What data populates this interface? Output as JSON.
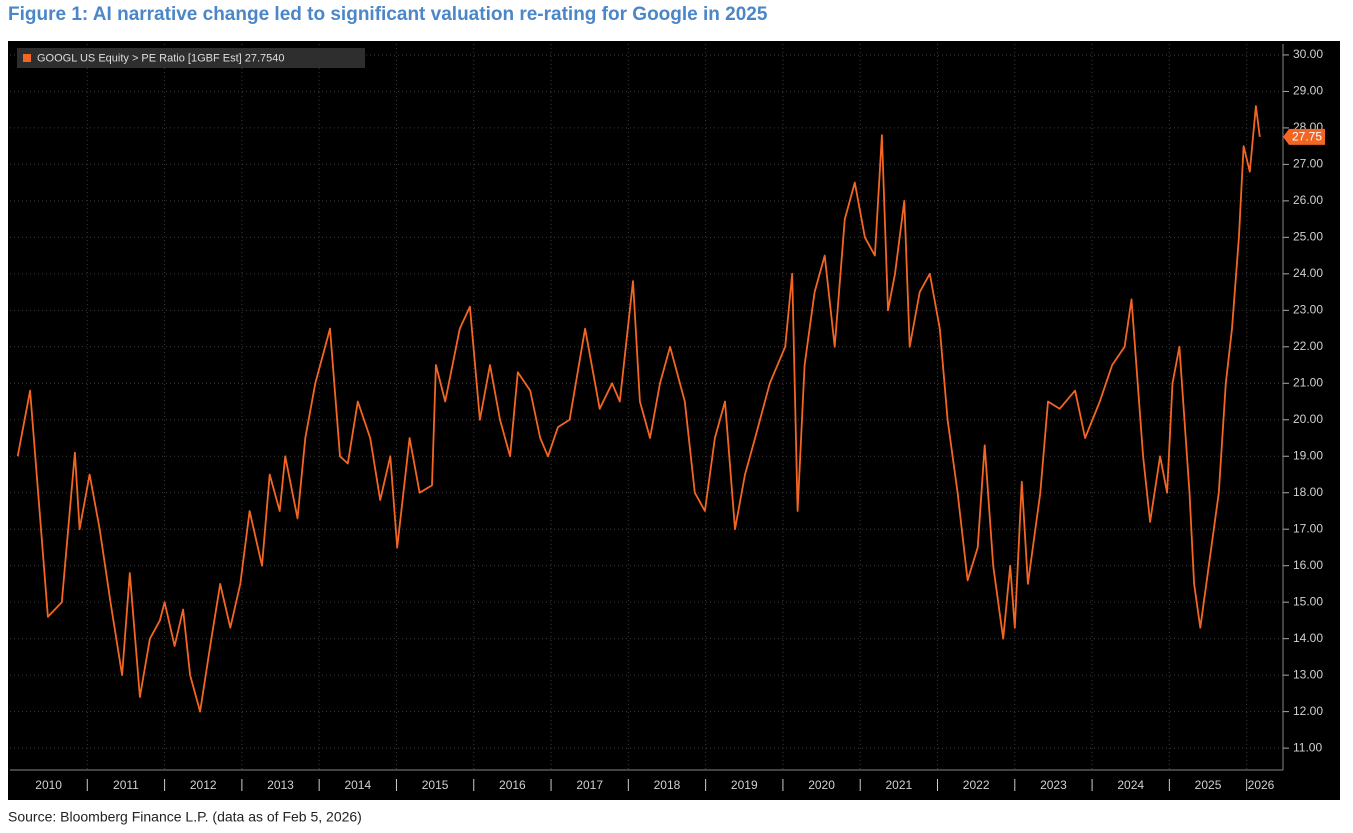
{
  "chart_data": {
    "type": "line",
    "title": "Figure 1: AI narrative change led to significant valuation re-rating for Google in 2025",
    "source": "Source: Bloomberg Finance L.P. (data as of Feb 5, 2026)",
    "x": [
      2010.1,
      2010.26,
      2010.49,
      2010.67,
      2010.84,
      2010.9,
      2011.03,
      2011.16,
      2011.3,
      2011.45,
      2011.55,
      2011.68,
      2011.81,
      2011.94,
      2012.0,
      2012.13,
      2012.24,
      2012.33,
      2012.46,
      2012.59,
      2012.72,
      2012.85,
      2012.98,
      2013.1,
      2013.26,
      2013.36,
      2013.49,
      2013.56,
      2013.72,
      2013.82,
      2013.95,
      2014.14,
      2014.27,
      2014.37,
      2014.5,
      2014.66,
      2014.79,
      2014.92,
      2015.01,
      2015.17,
      2015.3,
      2015.46,
      2015.51,
      2015.63,
      2015.82,
      2015.95,
      2016.08,
      2016.21,
      2016.34,
      2016.47,
      2016.57,
      2016.73,
      2016.86,
      2016.96,
      2017.09,
      2017.24,
      2017.44,
      2017.63,
      2017.79,
      2017.89,
      2018.06,
      2018.15,
      2018.28,
      2018.41,
      2018.54,
      2018.73,
      2018.86,
      2018.99,
      2019.12,
      2019.25,
      2019.38,
      2019.51,
      2019.64,
      2019.83,
      2020.03,
      2020.12,
      2020.19,
      2020.28,
      2020.41,
      2020.54,
      2020.67,
      2020.8,
      2020.93,
      2021.06,
      2021.19,
      2021.28,
      2021.36,
      2021.45,
      2021.57,
      2021.64,
      2021.77,
      2021.9,
      2022.03,
      2022.13,
      2022.26,
      2022.39,
      2022.52,
      2022.61,
      2022.72,
      2022.85,
      2022.94,
      2023.0,
      2023.09,
      2023.17,
      2023.33,
      2023.43,
      2023.58,
      2023.78,
      2023.91,
      2024.1,
      2024.26,
      2024.42,
      2024.51,
      2024.66,
      2024.75,
      2024.88,
      2024.97,
      2025.04,
      2025.13,
      2025.26,
      2025.32,
      2025.4,
      2025.51,
      2025.64,
      2025.73,
      2025.81,
      2025.9,
      2025.96,
      2026.04,
      2026.12,
      2026.17
    ],
    "series": [
      {
        "name": "GOOGL US Equity > PE Ratio [1GBF Est] 27.7540",
        "color": "#f26522",
        "values": [
          19.0,
          20.8,
          14.6,
          15.0,
          19.1,
          17.0,
          18.5,
          17.0,
          15.0,
          13.0,
          15.8,
          12.4,
          14.0,
          14.5,
          15.0,
          13.8,
          14.8,
          13.0,
          12.0,
          13.8,
          15.5,
          14.3,
          15.5,
          17.5,
          16.0,
          18.5,
          17.5,
          19.0,
          17.3,
          19.5,
          21.0,
          22.5,
          19.0,
          18.8,
          20.5,
          19.5,
          17.8,
          19.0,
          16.5,
          19.5,
          18.0,
          18.2,
          21.5,
          20.5,
          22.5,
          23.1,
          20.0,
          21.5,
          20.0,
          19.0,
          21.3,
          20.8,
          19.5,
          19.0,
          19.8,
          20.0,
          22.5,
          20.3,
          21.0,
          20.5,
          23.8,
          20.5,
          19.5,
          21.0,
          22.0,
          20.5,
          18.0,
          17.5,
          19.5,
          20.5,
          17.0,
          18.5,
          19.5,
          21.0,
          22.0,
          24.0,
          17.5,
          21.5,
          23.5,
          24.5,
          22.0,
          25.5,
          26.5,
          25.0,
          24.5,
          27.8,
          23.0,
          24.0,
          26.0,
          22.0,
          23.5,
          24.0,
          22.5,
          20.0,
          18.0,
          15.6,
          16.5,
          19.3,
          16.0,
          14.0,
          16.0,
          14.3,
          18.3,
          15.5,
          18.0,
          20.5,
          20.3,
          20.8,
          19.5,
          20.5,
          21.5,
          22.0,
          23.3,
          19.0,
          17.2,
          19.0,
          18.0,
          21.0,
          22.0,
          18.0,
          15.5,
          14.3,
          16.0,
          18.0,
          21.0,
          22.5,
          25.0,
          27.5,
          26.8,
          28.6,
          27.754
        ]
      }
    ],
    "last_value_label": "27.75",
    "xlim": [
      2010,
      2026.47
    ],
    "xticks": [
      2011,
      2012,
      2013,
      2014,
      2015,
      2016,
      2017,
      2018,
      2019,
      2020,
      2021,
      2022,
      2023,
      2024,
      2025,
      2026
    ],
    "year_labels": [
      2010,
      2011,
      2012,
      2013,
      2014,
      2015,
      2016,
      2017,
      2018,
      2019,
      2020,
      2021,
      2022,
      2023,
      2024,
      2025,
      2026
    ],
    "ylim": [
      10.4,
      30.3
    ],
    "yticks": [
      {
        "value": 11,
        "label": "11.00"
      },
      {
        "value": 12,
        "label": "12.00"
      },
      {
        "value": 13,
        "label": "13.00"
      },
      {
        "value": 14,
        "label": "14.00"
      },
      {
        "value": 15,
        "label": "15.00"
      },
      {
        "value": 16,
        "label": "16.00"
      },
      {
        "value": 17,
        "label": "17.00"
      },
      {
        "value": 18,
        "label": "18.00"
      },
      {
        "value": 19,
        "label": "19.00"
      },
      {
        "value": 20,
        "label": "20.00"
      },
      {
        "value": 21,
        "label": "21.00"
      },
      {
        "value": 22,
        "label": "22.00"
      },
      {
        "value": 23,
        "label": "23.00"
      },
      {
        "value": 24,
        "label": "24.00"
      },
      {
        "value": 25,
        "label": "25.00"
      },
      {
        "value": 26,
        "label": "26.00"
      },
      {
        "value": 27,
        "label": "27.00"
      },
      {
        "value": 28,
        "label": "28.00"
      },
      {
        "value": 29,
        "label": "29.00"
      },
      {
        "value": 30,
        "label": "30.00"
      }
    ],
    "grid": true
  }
}
